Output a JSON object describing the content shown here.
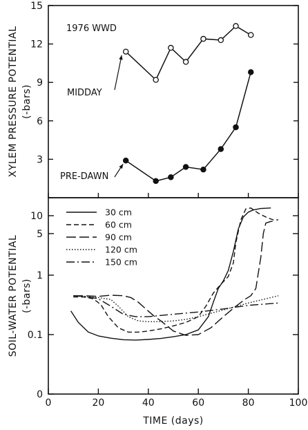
{
  "chart_data": [
    {
      "type": "line",
      "panel": "top",
      "annotation": "1976 WWD",
      "ylabel_line1": "XYLEM PRESSURE POTENTIAL",
      "ylabel_line2": "(-bars)",
      "ylim": [
        0,
        15
      ],
      "yticks": [
        0,
        3,
        6,
        9,
        12,
        15
      ],
      "xlim": [
        0,
        100
      ],
      "series": [
        {
          "name": "MIDDAY",
          "marker": "open-circle",
          "x": [
            31,
            43,
            49,
            55,
            62,
            69,
            75,
            81
          ],
          "y": [
            11.4,
            9.2,
            11.7,
            10.6,
            12.4,
            12.3,
            13.4,
            12.7
          ]
        },
        {
          "name": "PRE-DAWN",
          "marker": "filled-circle",
          "x": [
            31,
            43,
            49,
            55,
            62,
            69,
            75,
            81
          ],
          "y": [
            2.9,
            1.3,
            1.6,
            2.4,
            2.2,
            3.8,
            5.5,
            9.8
          ]
        }
      ]
    },
    {
      "type": "line",
      "panel": "bottom",
      "ylabel_line1": "SOIL-WATER POTENTIAL",
      "ylabel_line2": "(-bars)",
      "xlabel": "TIME (days)",
      "xlim": [
        0,
        100
      ],
      "xticks": [
        0,
        20,
        40,
        60,
        80,
        100
      ],
      "yscale": "log",
      "yticks": [
        "0",
        "0.1",
        "1",
        "5",
        "10"
      ],
      "legend_position": "top-left",
      "series": [
        {
          "name": "30 cm",
          "dash": "solid",
          "x": [
            9,
            12,
            16,
            20,
            25,
            30,
            35,
            40,
            45,
            50,
            55,
            60,
            64,
            66,
            68,
            70,
            72,
            74,
            76,
            78,
            80,
            82,
            85,
            89
          ],
          "y": [
            0.25,
            0.16,
            0.11,
            0.095,
            0.087,
            0.082,
            0.081,
            0.083,
            0.086,
            0.092,
            0.1,
            0.12,
            0.2,
            0.35,
            0.6,
            0.8,
            1.2,
            2.5,
            6,
            9.5,
            11.5,
            12.5,
            13.2,
            13.5
          ]
        },
        {
          "name": "60 cm",
          "dash": "short-dash",
          "x": [
            10,
            14,
            18,
            21,
            24,
            28,
            32,
            36,
            40,
            45,
            50,
            55,
            60,
            63,
            66,
            69,
            72,
            74,
            75,
            77,
            79,
            81,
            84,
            87,
            90,
            92
          ],
          "y": [
            0.43,
            0.43,
            0.4,
            0.32,
            0.2,
            0.13,
            0.11,
            0.11,
            0.115,
            0.125,
            0.14,
            0.16,
            0.2,
            0.3,
            0.5,
            0.7,
            0.95,
            1.6,
            3.5,
            8.5,
            13,
            13.5,
            11,
            9.5,
            8.5,
            8.5
          ]
        },
        {
          "name": "90 cm",
          "dash": "long-dash",
          "x": [
            10,
            15,
            20,
            25,
            30,
            33,
            36,
            39,
            42,
            45,
            50,
            55,
            60,
            65,
            70,
            75,
            79,
            81,
            83,
            85,
            86,
            87,
            89,
            91
          ],
          "y": [
            0.45,
            0.45,
            0.44,
            0.46,
            0.45,
            0.42,
            0.35,
            0.27,
            0.21,
            0.17,
            0.115,
            0.097,
            0.1,
            0.13,
            0.2,
            0.3,
            0.4,
            0.45,
            0.6,
            2,
            5,
            7.5,
            8,
            8
          ]
        },
        {
          "name": "120 cm",
          "dash": "dotted",
          "x": [
            10,
            15,
            20,
            25,
            28,
            32,
            36,
            40,
            45,
            50,
            55,
            60,
            70,
            80,
            92
          ],
          "y": [
            0.45,
            0.43,
            0.42,
            0.39,
            0.3,
            0.2,
            0.17,
            0.165,
            0.165,
            0.17,
            0.18,
            0.2,
            0.26,
            0.34,
            0.45
          ]
        },
        {
          "name": "150 cm",
          "dash": "dash-dot",
          "x": [
            10,
            15,
            20,
            25,
            30,
            35,
            40,
            45,
            50,
            55,
            60,
            70,
            80,
            92
          ],
          "y": [
            0.45,
            0.44,
            0.4,
            0.3,
            0.22,
            0.2,
            0.2,
            0.21,
            0.22,
            0.23,
            0.24,
            0.27,
            0.31,
            0.34
          ]
        }
      ]
    }
  ]
}
